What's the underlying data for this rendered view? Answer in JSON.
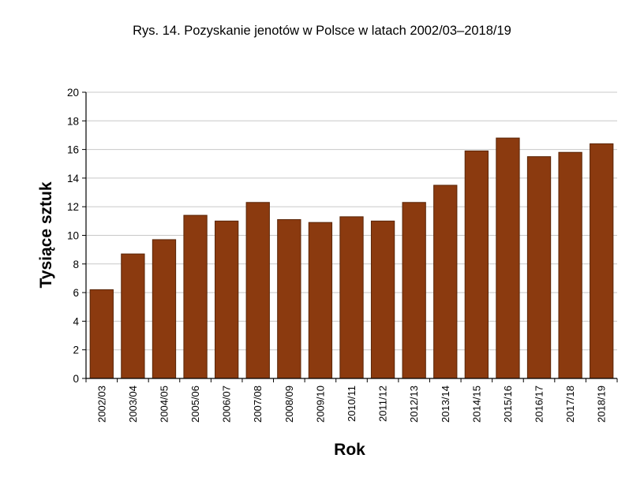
{
  "chart_data": {
    "type": "bar",
    "title": "Rys. 14. Pozyskanie jenotów w Polsce w latach 2002/03–2018/19",
    "xlabel": "Rok",
    "ylabel": "Tysiące sztuk",
    "ylim": [
      0,
      20
    ],
    "yticks": [
      "0",
      "2",
      "4",
      "6",
      "8",
      "10",
      "12",
      "14",
      "16",
      "18",
      "20"
    ],
    "grid": true,
    "legend": "none",
    "categories": [
      "2002/03",
      "2003/04",
      "2004/05",
      "2005/06",
      "2006/07",
      "2007/08",
      "2008/09",
      "2009/10",
      "2010/11",
      "2011/12",
      "2012/13",
      "2013/14",
      "2014/15",
      "2015/16",
      "2016/17",
      "2017/18",
      "2018/19"
    ],
    "values": [
      6.2,
      8.7,
      9.7,
      11.4,
      11.0,
      12.3,
      11.1,
      10.9,
      11.3,
      11.0,
      12.3,
      13.5,
      15.9,
      16.8,
      15.5,
      15.8,
      16.4
    ],
    "colors": {
      "bar": "#8B3A0F",
      "bar_edge": "#5a2608",
      "grid": "#c8c8c8",
      "axis": "#000000"
    }
  }
}
